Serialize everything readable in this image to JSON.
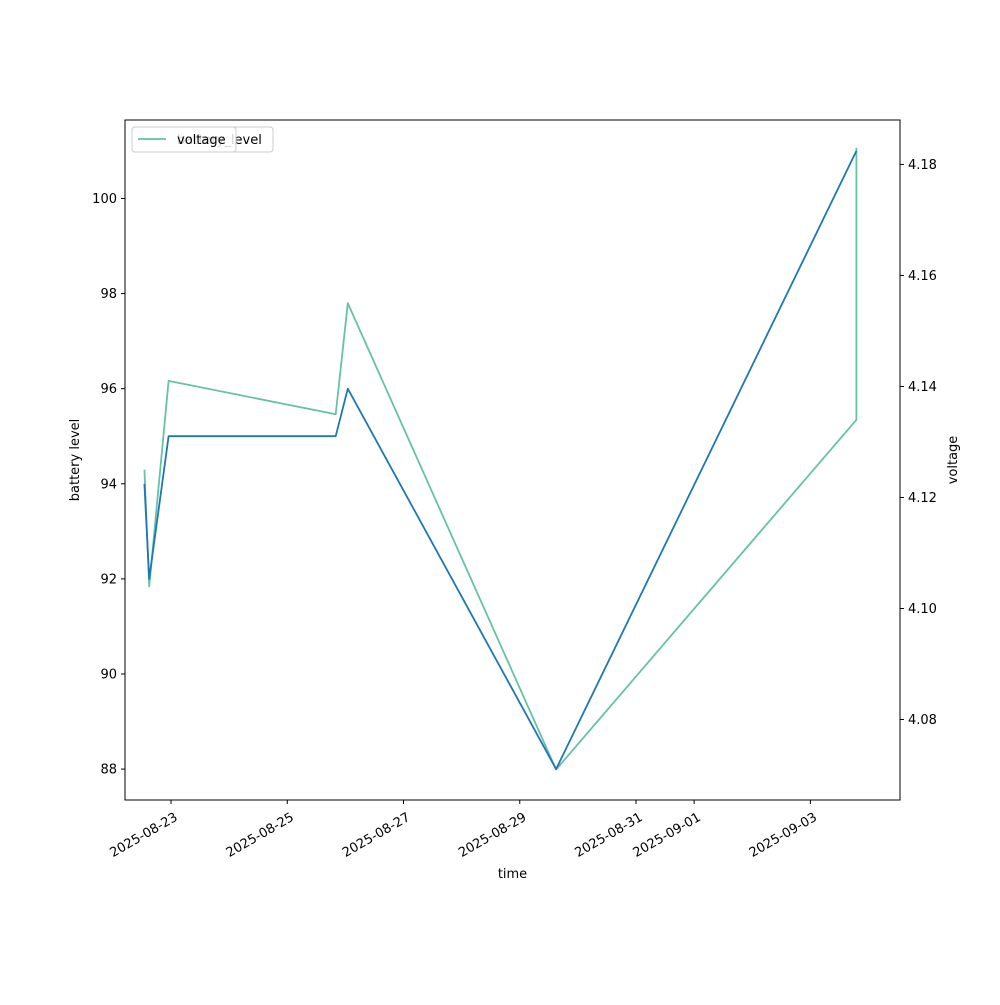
{
  "chart_data": {
    "type": "line",
    "title": "",
    "xlabel": "time",
    "ylabel_left": "battery level",
    "ylabel_right": "voltage",
    "x_ticks": [
      "2025-08-23",
      "2025-08-25",
      "2025-08-27",
      "2025-08-29",
      "2025-08-31",
      "2025-09-01",
      "2025-09-03"
    ],
    "x_range": [
      "2025-08-22T05:00",
      "2025-09-04T13:00"
    ],
    "y_left_ticks": [
      "88",
      "90",
      "92",
      "94",
      "96",
      "98",
      "100"
    ],
    "y_left_range": [
      87.35,
      101.65
    ],
    "y_right_ticks": [
      "4.08",
      "4.10",
      "4.12",
      "4.14",
      "4.16",
      "4.18"
    ],
    "y_right_range": [
      4.0655,
      4.188
    ],
    "grid": false,
    "legend_position": "top-left",
    "legend_entries_left": [
      "battery_level"
    ],
    "legend_entries_right": [
      "voltage"
    ],
    "series": [
      {
        "name": "battery_level",
        "axis": "left",
        "color": "#1f77b4",
        "x": [
          "2025-08-22T13:00",
          "2025-08-22T15:00",
          "2025-08-22T23:00",
          "2025-08-25T20:00",
          "2025-08-26T01:00",
          "2025-08-29T15:00",
          "2025-09-03T19:00",
          "2025-09-03T19:00"
        ],
        "y": [
          94,
          92,
          95,
          95,
          96,
          88,
          101,
          101
        ]
      },
      {
        "name": "voltage",
        "axis": "right",
        "color": "#66c2a5",
        "x": [
          "2025-08-22T13:00",
          "2025-08-22T15:00",
          "2025-08-22T23:00",
          "2025-08-25T20:00",
          "2025-08-26T01:00",
          "2025-08-29T15:00",
          "2025-09-03T19:00",
          "2025-09-03T19:00"
        ],
        "y": [
          4.125,
          4.104,
          4.141,
          4.135,
          4.155,
          4.071,
          4.134,
          4.183
        ]
      }
    ]
  }
}
